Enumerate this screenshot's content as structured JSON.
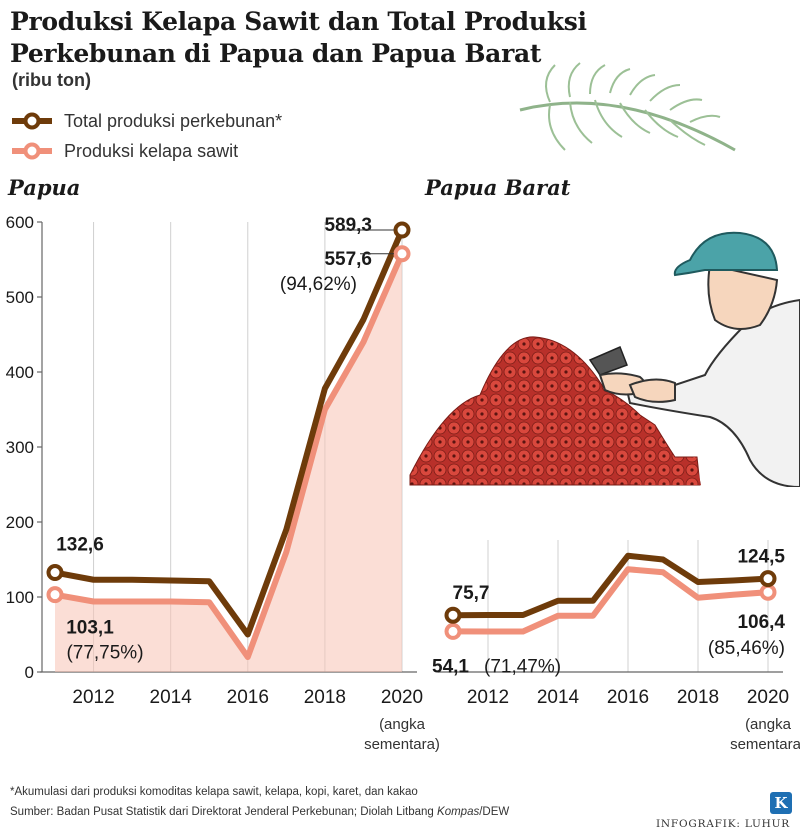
{
  "title": "Produksi Kelapa Sawit dan Total Produksi Perkebunan di Papua dan Papua Barat",
  "unit": "(ribu ton)",
  "legend": [
    {
      "label": "Total produksi perkebunan*",
      "color": "#6e3b0a"
    },
    {
      "label": "Produksi kelapa sawit",
      "color": "#f0907a"
    }
  ],
  "footnote": "*Akumulasi dari produksi komoditas kelapa sawit, kelapa, kopi, karet, dan kakao",
  "source_prefix": "Sumber: Badan Pusat Statistik dari Direktorat Jenderal Perkebunan; Diolah Litbang ",
  "source_italic": "Kompas",
  "source_suffix": "/DEW",
  "credit": "INFOGRAFIK: LUHUR",
  "logo_letter": "K",
  "colors": {
    "total": "#6e3b0a",
    "sawit": "#f0907a",
    "fill": "#f7c3b4",
    "axis": "#666666"
  },
  "chart_data": [
    {
      "type": "line",
      "title": "Papua",
      "x": [
        2011,
        2012,
        2013,
        2014,
        2015,
        2016,
        2017,
        2018,
        2019,
        2020
      ],
      "xticks": [
        "2012",
        "2014",
        "2016",
        "2018",
        "2020"
      ],
      "xtick_values": [
        2012,
        2014,
        2016,
        2018,
        2020
      ],
      "last_tick_note": [
        "(angka",
        "sementara)"
      ],
      "ylim": [
        0,
        600
      ],
      "yticks": [
        "0",
        "100",
        "200",
        "300",
        "400",
        "500",
        "600"
      ],
      "grid": "vertical",
      "series": [
        {
          "name": "Total produksi perkebunan*",
          "values": [
            132.6,
            123,
            123,
            122,
            121,
            50,
            190,
            378,
            470,
            589.3
          ]
        },
        {
          "name": "Produksi kelapa sawit",
          "values": [
            103.1,
            94,
            94,
            94,
            93,
            20,
            160,
            350,
            440,
            557.6
          ]
        }
      ],
      "annotations": [
        {
          "text": "132,6"
        },
        {
          "text": "103,1"
        },
        {
          "text": "(77,75%)"
        },
        {
          "text": "589,3"
        },
        {
          "text": "557,6"
        },
        {
          "text": "(94,62%)"
        }
      ]
    },
    {
      "type": "line",
      "title": "Papua Barat",
      "x": [
        2011,
        2012,
        2013,
        2014,
        2015,
        2016,
        2017,
        2018,
        2019,
        2020
      ],
      "xticks": [
        "2012",
        "2014",
        "2016",
        "2018",
        "2020"
      ],
      "xtick_values": [
        2012,
        2014,
        2016,
        2018,
        2020
      ],
      "last_tick_note": [
        "(angka",
        "sementara)"
      ],
      "ylim": [
        0,
        600
      ],
      "grid": "vertical",
      "series": [
        {
          "name": "Total produksi perkebunan*",
          "values": [
            75.7,
            76,
            76,
            95,
            95,
            155,
            150,
            120,
            122,
            124.5
          ]
        },
        {
          "name": "Produksi kelapa sawit",
          "values": [
            54.1,
            54,
            54,
            75,
            75,
            137,
            133,
            99,
            103,
            106.4
          ]
        }
      ],
      "annotations": [
        {
          "text": "75,7"
        },
        {
          "text": "54,1"
        },
        {
          "text": "(71,47%)"
        },
        {
          "text": "124,5"
        },
        {
          "text": "106,4"
        },
        {
          "text": "(85,46%)"
        }
      ]
    }
  ]
}
